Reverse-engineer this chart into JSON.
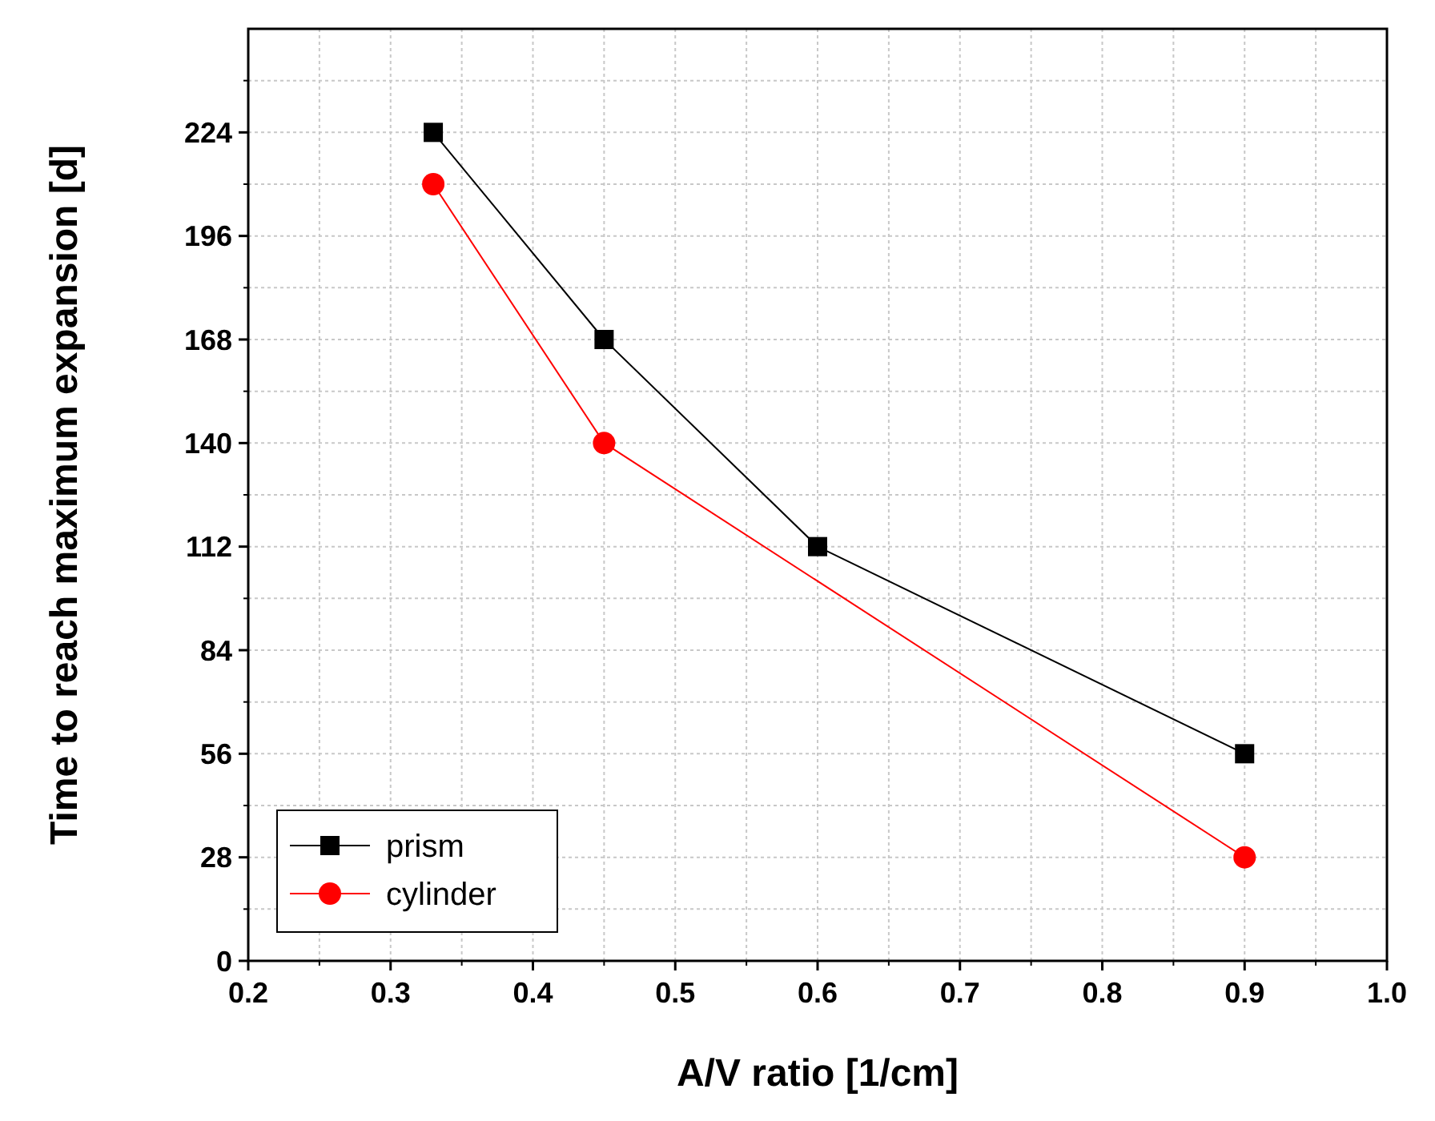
{
  "chart_data": {
    "type": "line",
    "xlabel": "A/V ratio [1/cm]",
    "ylabel": "Time to reach maximum expansion [d]",
    "xlim": [
      0.2,
      1.0
    ],
    "xticks": [
      0.2,
      0.3,
      0.4,
      0.5,
      0.6,
      0.7,
      0.8,
      0.9,
      {
        "value": 1,
        "label": "1.0"
      }
    ],
    "ylim": [
      0,
      252
    ],
    "yticks": [
      0,
      28,
      56,
      84,
      112,
      140,
      168,
      196,
      224
    ],
    "grid": true,
    "legend": "bottom left",
    "series": [
      {
        "name": "prism",
        "color": "#000000",
        "marker": "square",
        "x": [
          0.33,
          0.45,
          0.6,
          0.9
        ],
        "values": [
          224,
          168,
          112,
          56
        ]
      },
      {
        "name": "cylinder",
        "color": "#ff0000",
        "marker": "circle",
        "x": [
          0.33,
          0.45,
          0.9
        ],
        "values": [
          210,
          140,
          28
        ]
      }
    ]
  }
}
